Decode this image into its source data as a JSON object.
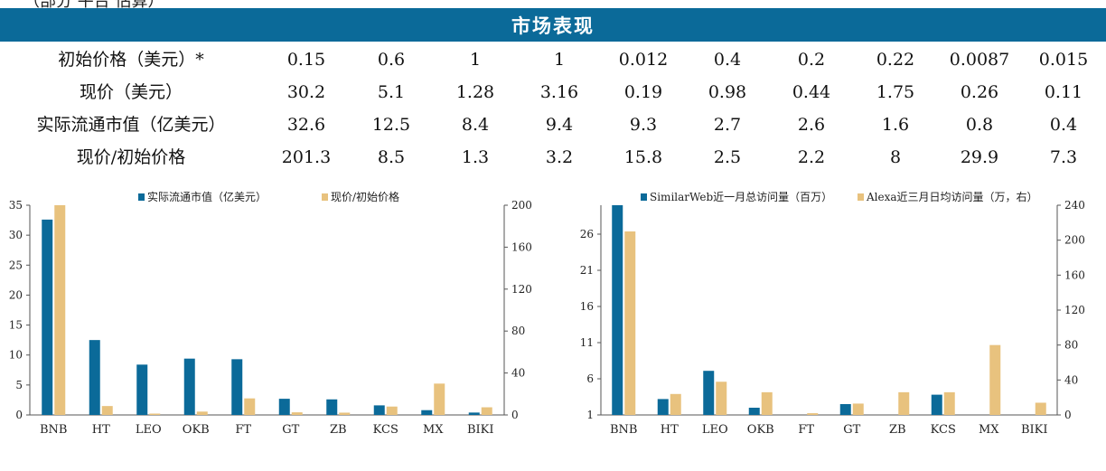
{
  "clipped_title": "（部分 平台 估算）",
  "header": {
    "title": "市场表现"
  },
  "table": {
    "rows": [
      {
        "label": "初始价格（美元）*",
        "values": [
          "0.15",
          "0.6",
          "1",
          "1",
          "0.012",
          "0.4",
          "0.2",
          "0.22",
          "0.0087",
          "0.015"
        ]
      },
      {
        "label": "现价（美元）",
        "values": [
          "30.2",
          "5.1",
          "1.28",
          "3.16",
          "0.19",
          "0.98",
          "0.44",
          "1.75",
          "0.26",
          "0.11"
        ]
      },
      {
        "label": "实际流通市值（亿美元）",
        "values": [
          "32.6",
          "12.5",
          "8.4",
          "9.4",
          "9.3",
          "2.7",
          "2.6",
          "1.6",
          "0.8",
          "0.4"
        ]
      },
      {
        "label": "现价/初始价格",
        "values": [
          "201.3",
          "8.5",
          "1.3",
          "3.2",
          "15.8",
          "2.5",
          "2.2",
          "8",
          "29.9",
          "7.3"
        ]
      }
    ]
  },
  "colors": {
    "blue": "#0b6a99",
    "tan": "#e8c27e"
  },
  "chart_data": [
    {
      "type": "bar",
      "categories": [
        "BNB",
        "HT",
        "LEO",
        "OKB",
        "FT",
        "GT",
        "ZB",
        "KCS",
        "MX",
        "BIKI"
      ],
      "series": [
        {
          "name": "实际流通市值（亿美元）",
          "axis": "left",
          "color": "#0b6a99",
          "values": [
            32.6,
            12.5,
            8.4,
            9.4,
            9.3,
            2.7,
            2.6,
            1.6,
            0.8,
            0.4
          ]
        },
        {
          "name": "现价/初始价格",
          "axis": "right",
          "color": "#e8c27e",
          "values": [
            201.3,
            8.5,
            1.3,
            3.2,
            15.8,
            2.5,
            2.2,
            8,
            29.9,
            7.3
          ]
        }
      ],
      "y_left": {
        "range": [
          0,
          35
        ],
        "ticks": [
          0,
          5,
          10,
          15,
          20,
          25,
          30,
          35
        ]
      },
      "y_right": {
        "range": [
          0,
          200
        ],
        "ticks": [
          0,
          40,
          80,
          120,
          160,
          200
        ]
      },
      "legend": "top-center",
      "grid": false
    },
    {
      "type": "bar",
      "categories": [
        "BNB",
        "HT",
        "LEO",
        "OKB",
        "FT",
        "GT",
        "ZB",
        "KCS",
        "MX",
        "BIKI"
      ],
      "series": [
        {
          "name": "SimilarWeb近一月总访问量（百万）",
          "axis": "left",
          "color": "#0b6a99",
          "values": [
            30,
            3.2,
            7.1,
            2.0,
            0.5,
            2.5,
            0.5,
            3.8,
            0.5,
            0.5
          ]
        },
        {
          "name": "Alexa近三月日均访问量（万，右）",
          "axis": "right",
          "color": "#e8c27e",
          "values": [
            210,
            24,
            38,
            26,
            2,
            13,
            26,
            26,
            80,
            14
          ]
        }
      ],
      "y_left": {
        "range": [
          1,
          30
        ],
        "ticks": [
          1,
          6,
          11,
          16,
          21,
          26
        ]
      },
      "y_right": {
        "range": [
          0,
          240
        ],
        "ticks": [
          0,
          40,
          80,
          120,
          160,
          200,
          240
        ]
      },
      "legend": "top-center",
      "grid": false
    }
  ]
}
